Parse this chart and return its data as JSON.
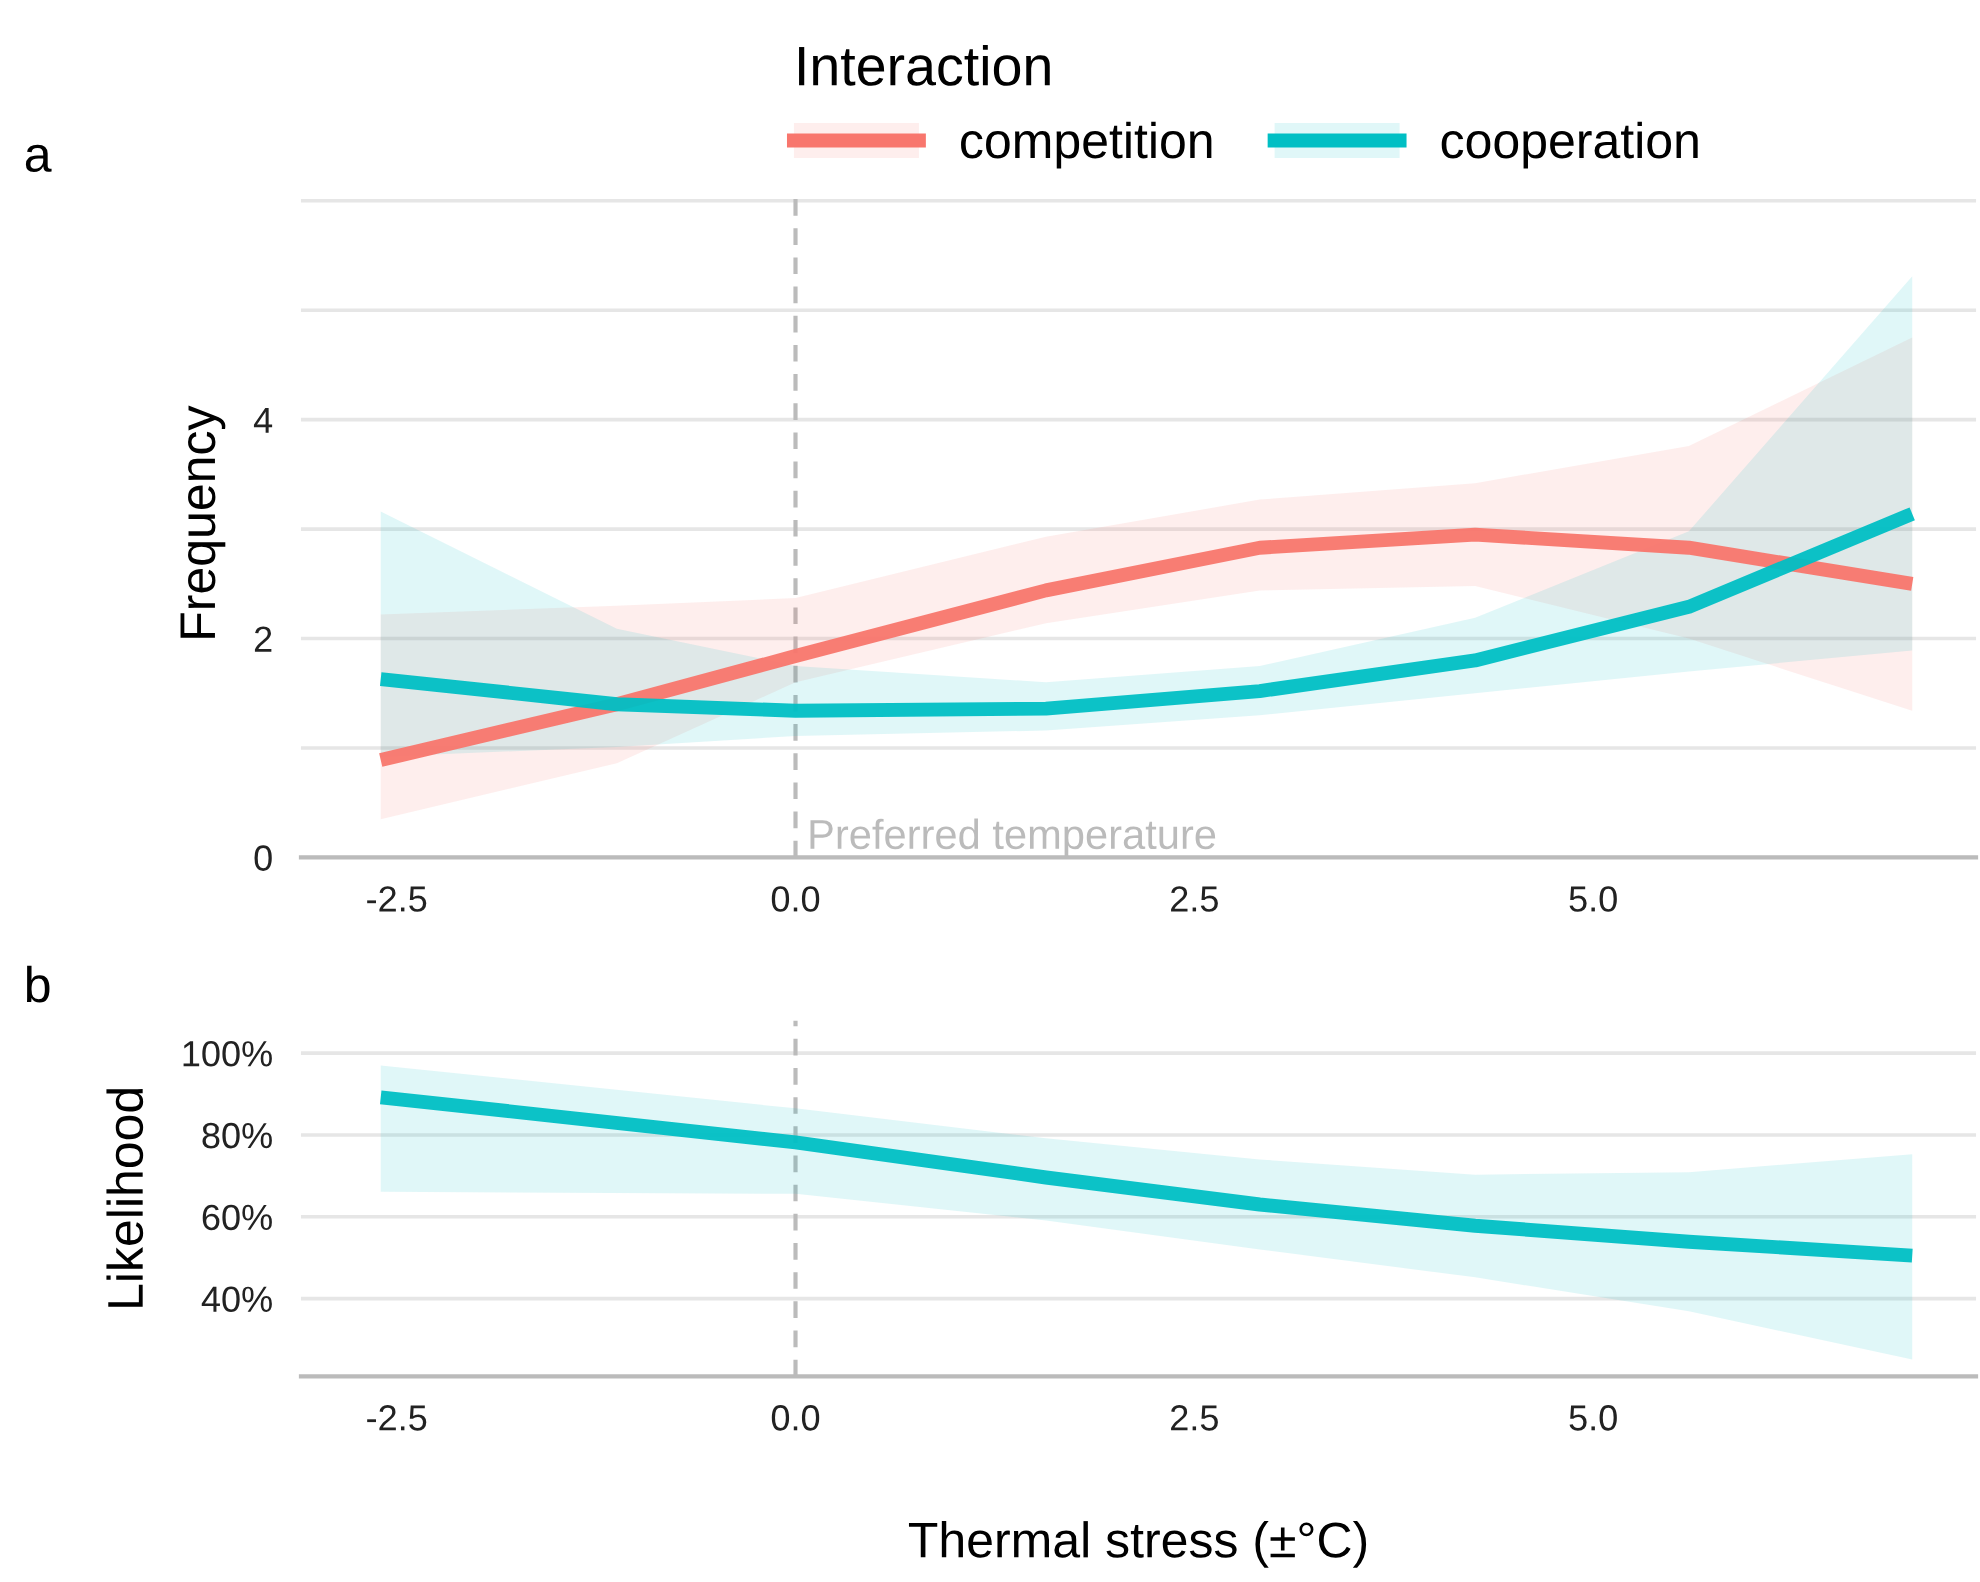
{
  "chart_data": [
    {
      "type": "line",
      "title": "a",
      "ylabel": "Frequency",
      "legend_title": "Interaction",
      "legend": "top",
      "xlim": [
        -3.1,
        7.4
      ],
      "ylim": [
        0,
        6.1
      ],
      "xticks": [
        {
          "value": -2.5,
          "label": "-2.5"
        },
        {
          "value": 0,
          "label": "0.0"
        },
        {
          "value": 2.5,
          "label": "2.5"
        },
        {
          "value": 5,
          "label": "5.0"
        }
      ],
      "yticks": [
        0,
        {
          "value": 1,
          "label": null
        },
        2,
        {
          "value": 3,
          "label": null
        },
        4,
        {
          "value": 5,
          "label": null
        },
        {
          "value": 6,
          "label": null
        }
      ],
      "grid": "y",
      "marker": "none",
      "line_style": "solid",
      "ref_lines": [
        {
          "axis": "x",
          "value": 0,
          "label": "Preferred temperature",
          "color": "#bbbbbb",
          "line_style": "dashed"
        }
      ],
      "series": [
        {
          "name": "competition",
          "color": "#f8766d",
          "x": [
            -2.6,
            -1.12,
            0,
            1.57,
            2.91,
            4.26,
            5.6,
            7.0
          ],
          "values": [
            0.89,
            1.4,
            1.84,
            2.44,
            2.83,
            2.95,
            2.83,
            2.5
          ],
          "lower": [
            0.35,
            0.86,
            1.6,
            2.14,
            2.44,
            2.48,
            2.0,
            1.34
          ],
          "upper": [
            2.22,
            2.3,
            2.37,
            2.93,
            3.27,
            3.42,
            3.76,
            4.75
          ]
        },
        {
          "name": "cooperation",
          "color": "#00bfc4",
          "x": [
            -2.6,
            -1.12,
            0,
            1.57,
            2.91,
            4.26,
            5.6,
            7.0
          ],
          "values": [
            1.63,
            1.4,
            1.34,
            1.36,
            1.52,
            1.8,
            2.29,
            3.14
          ],
          "lower": [
            0.92,
            1.01,
            1.11,
            1.16,
            1.3,
            1.5,
            1.7,
            1.89
          ],
          "upper": [
            3.16,
            2.09,
            1.75,
            1.6,
            1.75,
            2.19,
            2.98,
            5.31
          ]
        }
      ]
    },
    {
      "type": "line",
      "title": "b",
      "ylabel": "Likelihood",
      "xlabel": "Thermal stress (±°C)",
      "xlim": [
        -3.1,
        7.4
      ],
      "ylim": [
        21,
        108
      ],
      "xticks": [
        {
          "value": -2.5,
          "label": "-2.5"
        },
        {
          "value": 0,
          "label": "0.0"
        },
        {
          "value": 2.5,
          "label": "2.5"
        },
        {
          "value": 5,
          "label": "5.0"
        }
      ],
      "yticks": [
        {
          "value": 40,
          "label": "40%"
        },
        {
          "value": 60,
          "label": "60%"
        },
        {
          "value": 80,
          "label": "80%"
        },
        {
          "value": 100,
          "label": "100%"
        }
      ],
      "grid": "y",
      "marker": "none",
      "line_style": "solid",
      "ref_lines": [
        {
          "axis": "x",
          "value": 0,
          "color": "#bbbbbb",
          "line_style": "dashed"
        }
      ],
      "series": [
        {
          "color": "#00bfc4",
          "x": [
            -2.6,
            0,
            1.57,
            2.91,
            4.26,
            5.6,
            7.0
          ],
          "values": [
            89.2,
            78.2,
            69.6,
            63.0,
            57.8,
            53.9,
            50.5
          ],
          "lower": [
            66.1,
            65.6,
            59.1,
            52.0,
            45.2,
            36.9,
            25.1
          ],
          "upper": [
            97,
            86.5,
            79.2,
            74.0,
            70.3,
            70.9,
            75.3
          ]
        }
      ]
    }
  ]
}
